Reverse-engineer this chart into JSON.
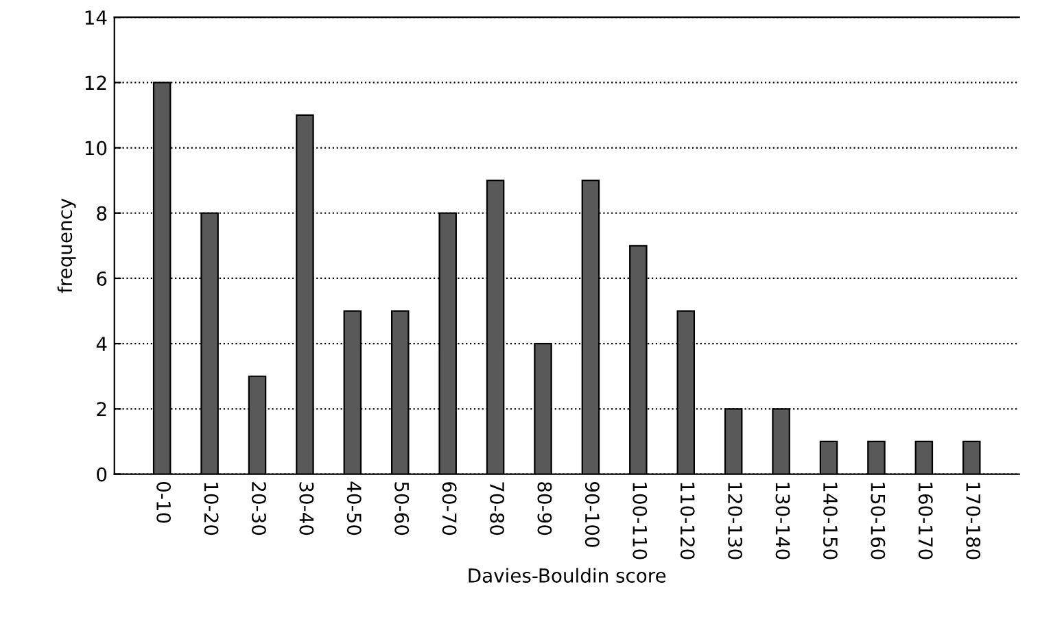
{
  "chart_data": {
    "type": "bar",
    "xlabel": "Davies-Bouldin score",
    "ylabel": "frequency",
    "categories": [
      "0-10",
      "10-20",
      "20-30",
      "30-40",
      "40-50",
      "50-60",
      "60-70",
      "70-80",
      "80-90",
      "90-100",
      "100-110",
      "110-120",
      "120-130",
      "130-140",
      "140-150",
      "150-160",
      "160-170",
      "170-180"
    ],
    "values": [
      12,
      8,
      3,
      11,
      5,
      5,
      8,
      9,
      4,
      9,
      7,
      5,
      2,
      2,
      1,
      1,
      1,
      1
    ],
    "color": "#595959",
    "ylim": [
      0,
      14
    ],
    "yticks": [
      0,
      2,
      4,
      6,
      8,
      10,
      12,
      14
    ],
    "grid": "y",
    "legend": false
  }
}
